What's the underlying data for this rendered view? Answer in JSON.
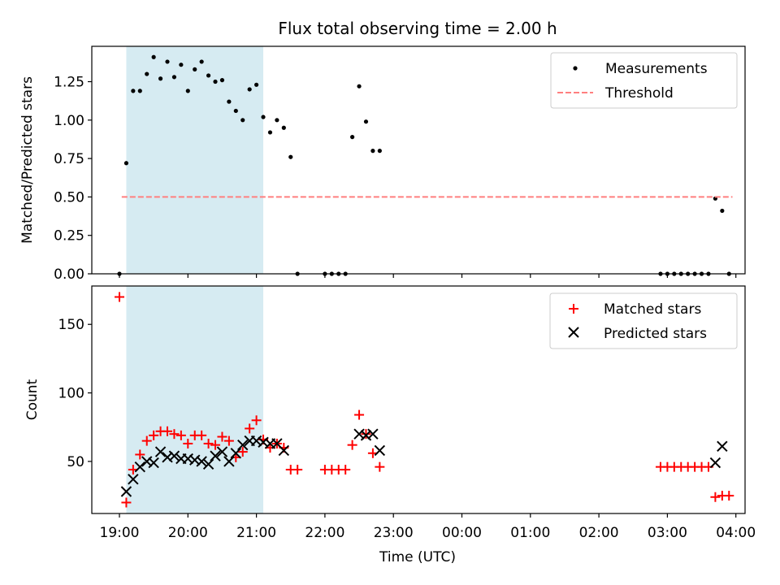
{
  "chart_data": [
    {
      "type": "scatter",
      "title": "Flux total observing time = 2.00 h",
      "ylabel": "Matched/Predicted stars",
      "xlabel": "",
      "ylim": [
        0,
        1.48
      ],
      "yticks": [
        "0.00",
        "0.25",
        "0.50",
        "0.75",
        "1.00",
        "1.25"
      ],
      "legend_placement": "top-right",
      "highlight_span": [
        "19:06",
        "21:06"
      ],
      "series": [
        {
          "name": "Measurements",
          "color": "#000000",
          "marker": "dot",
          "points": [
            [
              "19:00",
              0.0
            ],
            [
              "19:06",
              0.72
            ],
            [
              "19:12",
              1.19
            ],
            [
              "19:18",
              1.19
            ],
            [
              "19:24",
              1.3
            ],
            [
              "19:30",
              1.41
            ],
            [
              "19:36",
              1.27
            ],
            [
              "19:42",
              1.38
            ],
            [
              "19:48",
              1.28
            ],
            [
              "19:54",
              1.36
            ],
            [
              "20:00",
              1.19
            ],
            [
              "20:06",
              1.33
            ],
            [
              "20:12",
              1.38
            ],
            [
              "20:18",
              1.29
            ],
            [
              "20:24",
              1.25
            ],
            [
              "20:30",
              1.26
            ],
            [
              "20:36",
              1.12
            ],
            [
              "20:42",
              1.06
            ],
            [
              "20:48",
              1.0
            ],
            [
              "20:54",
              1.2
            ],
            [
              "21:00",
              1.23
            ],
            [
              "21:06",
              1.02
            ],
            [
              "21:12",
              0.92
            ],
            [
              "21:18",
              1.0
            ],
            [
              "21:24",
              0.95
            ],
            [
              "21:30",
              0.76
            ],
            [
              "21:36",
              0.0
            ],
            [
              "22:00",
              0.0
            ],
            [
              "22:06",
              0.0
            ],
            [
              "22:12",
              0.0
            ],
            [
              "22:18",
              0.0
            ],
            [
              "22:24",
              0.89
            ],
            [
              "22:30",
              1.22
            ],
            [
              "22:36",
              0.99
            ],
            [
              "22:42",
              0.8
            ],
            [
              "22:48",
              0.8
            ],
            [
              "02:54",
              0.0
            ],
            [
              "03:00",
              0.0
            ],
            [
              "03:06",
              0.0
            ],
            [
              "03:12",
              0.0
            ],
            [
              "03:18",
              0.0
            ],
            [
              "03:24",
              0.0
            ],
            [
              "03:30",
              0.0
            ],
            [
              "03:36",
              0.0
            ],
            [
              "03:42",
              0.49
            ],
            [
              "03:48",
              0.41
            ],
            [
              "03:54",
              0.0
            ]
          ]
        },
        {
          "name": "Threshold",
          "color": "#ff7f7f",
          "marker": "dashed-line",
          "points": [
            [
              "19:02",
              0.5
            ],
            [
              "03:57",
              0.5
            ]
          ]
        }
      ]
    },
    {
      "type": "scatter",
      "title": "",
      "ylabel": "Count",
      "xlabel": "Time (UTC)",
      "ylim": [
        12,
        178
      ],
      "yticks": [
        "50",
        "100",
        "150"
      ],
      "xticks": [
        "19:00",
        "20:00",
        "21:00",
        "22:00",
        "23:00",
        "00:00",
        "01:00",
        "02:00",
        "03:00",
        "04:00"
      ],
      "legend_placement": "top-right",
      "highlight_span": [
        "19:06",
        "21:06"
      ],
      "series": [
        {
          "name": "Matched stars",
          "color": "#ff0000",
          "marker": "plus",
          "points": [
            [
              "19:00",
              170
            ],
            [
              "19:06",
              20
            ],
            [
              "19:12",
              44
            ],
            [
              "19:18",
              55
            ],
            [
              "19:24",
              65
            ],
            [
              "19:30",
              69
            ],
            [
              "19:36",
              72
            ],
            [
              "19:42",
              72
            ],
            [
              "19:48",
              70
            ],
            [
              "19:54",
              69
            ],
            [
              "20:00",
              63
            ],
            [
              "20:06",
              69
            ],
            [
              "20:12",
              69
            ],
            [
              "20:18",
              63
            ],
            [
              "20:24",
              62
            ],
            [
              "20:30",
              68
            ],
            [
              "20:36",
              65
            ],
            [
              "20:42",
              53
            ],
            [
              "20:48",
              57
            ],
            [
              "20:54",
              74
            ],
            [
              "21:00",
              80
            ],
            [
              "21:06",
              66
            ],
            [
              "21:12",
              60
            ],
            [
              "21:18",
              63
            ],
            [
              "21:24",
              60
            ],
            [
              "21:30",
              44
            ],
            [
              "21:36",
              44
            ],
            [
              "22:00",
              44
            ],
            [
              "22:06",
              44
            ],
            [
              "22:12",
              44
            ],
            [
              "22:18",
              44
            ],
            [
              "22:24",
              62
            ],
            [
              "22:30",
              84
            ],
            [
              "22:36",
              70
            ],
            [
              "22:42",
              56
            ],
            [
              "22:48",
              46
            ],
            [
              "02:54",
              46
            ],
            [
              "03:00",
              46
            ],
            [
              "03:06",
              46
            ],
            [
              "03:12",
              46
            ],
            [
              "03:18",
              46
            ],
            [
              "03:24",
              46
            ],
            [
              "03:30",
              46
            ],
            [
              "03:36",
              46
            ],
            [
              "03:42",
              24
            ],
            [
              "03:48",
              25
            ],
            [
              "03:54",
              25
            ]
          ]
        },
        {
          "name": "Predicted stars",
          "color": "#000000",
          "marker": "cross",
          "points": [
            [
              "19:06",
              28
            ],
            [
              "19:12",
              37
            ],
            [
              "19:18",
              46
            ],
            [
              "19:24",
              50
            ],
            [
              "19:30",
              49
            ],
            [
              "19:36",
              57
            ],
            [
              "19:42",
              53
            ],
            [
              "19:48",
              54
            ],
            [
              "19:54",
              52
            ],
            [
              "20:00",
              52
            ],
            [
              "20:06",
              51
            ],
            [
              "20:12",
              50
            ],
            [
              "20:18",
              48
            ],
            [
              "20:24",
              54
            ],
            [
              "20:30",
              57
            ],
            [
              "20:36",
              50
            ],
            [
              "20:42",
              56
            ],
            [
              "20:48",
              62
            ],
            [
              "20:54",
              65
            ],
            [
              "21:00",
              65
            ],
            [
              "21:06",
              64
            ],
            [
              "21:12",
              63
            ],
            [
              "21:18",
              63
            ],
            [
              "21:24",
              58
            ],
            [
              "22:30",
              70
            ],
            [
              "22:36",
              69
            ],
            [
              "22:42",
              70
            ],
            [
              "22:48",
              58
            ],
            [
              "03:42",
              49
            ],
            [
              "03:48",
              61
            ]
          ]
        }
      ]
    }
  ]
}
